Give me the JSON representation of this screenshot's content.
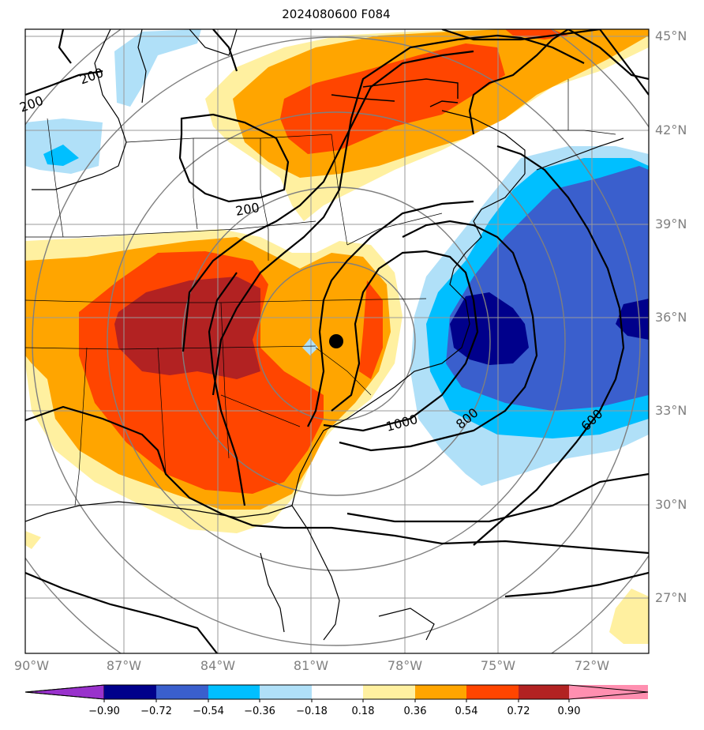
{
  "title": "2024080600 F084",
  "lat_labels": [
    "45°N",
    "42°N",
    "39°N",
    "36°N",
    "33°N",
    "30°N",
    "27°N"
  ],
  "lon_labels": [
    "90°W",
    "87°W",
    "84°W",
    "81°W",
    "78°W",
    "75°W",
    "72°W"
  ],
  "contour_labels": [
    "200",
    "200",
    "200",
    "1000",
    "800",
    "600"
  ],
  "colorbar": {
    "ticks": [
      "−0.90",
      "−0.72",
      "−0.54",
      "−0.36",
      "−0.18",
      "0.18",
      "0.36",
      "0.54",
      "0.72",
      "0.90"
    ],
    "colors": [
      "#9932cc",
      "#00008b",
      "#3a5fcd",
      "#00bfff",
      "#b0e0f8",
      "#ffffff",
      "#fff0a0",
      "#ffa500",
      "#ff4500",
      "#b22222",
      "#ff8fb0"
    ]
  },
  "center_marker": "storm-center"
}
